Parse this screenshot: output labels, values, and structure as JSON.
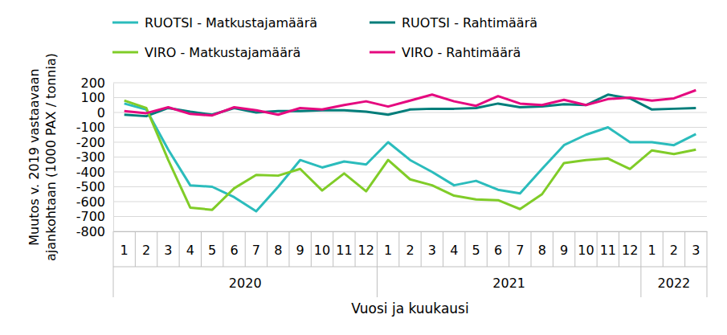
{
  "chart_data": {
    "type": "line",
    "y_label": [
      "Muutos v. 2019 vastaavaan",
      "ajankohtaan (1000 PAX / tonnia)"
    ],
    "x_label": "Vuosi ja kuukausi",
    "categories": [
      "1",
      "2",
      "3",
      "4",
      "5",
      "6",
      "7",
      "8",
      "9",
      "10",
      "11",
      "12",
      "1",
      "2",
      "3",
      "4",
      "5",
      "6",
      "7",
      "8",
      "9",
      "10",
      "11",
      "12",
      "1",
      "2",
      "3"
    ],
    "groups": [
      {
        "label": "2020",
        "count": 12
      },
      {
        "label": "2021",
        "count": 12
      },
      {
        "label": "2022",
        "count": 3
      }
    ],
    "ylim": [
      -800,
      200
    ],
    "yticks": [
      -800,
      -700,
      -600,
      -500,
      -400,
      -300,
      -200,
      -100,
      0,
      100,
      200
    ],
    "grid": true,
    "legend": "top",
    "series": [
      {
        "name": "RUOTSI - Matkustajamäärä",
        "color": "#2bbcbc",
        "values": [
          60,
          20,
          -250,
          -490,
          -500,
          -570,
          -665,
          -500,
          -320,
          -370,
          -330,
          -350,
          -200,
          -320,
          -400,
          -490,
          -460,
          -520,
          -545,
          -380,
          -220,
          -150,
          -100,
          -200,
          -200,
          -220,
          -145
        ]
      },
      {
        "name": "RUOTSI - Rahtimäärä",
        "color": "#007d7a",
        "values": [
          -15,
          -25,
          30,
          5,
          -15,
          30,
          0,
          10,
          10,
          15,
          15,
          5,
          -15,
          20,
          25,
          25,
          30,
          60,
          35,
          40,
          55,
          50,
          120,
          95,
          20,
          25,
          30
        ]
      },
      {
        "name": "VIRO - Matkustajamäärä",
        "color": "#80cc28",
        "values": [
          80,
          30,
          -320,
          -640,
          -655,
          -510,
          -420,
          -425,
          -380,
          -525,
          -410,
          -530,
          -320,
          -450,
          -490,
          -560,
          -585,
          -590,
          -650,
          -550,
          -340,
          -320,
          -310,
          -380,
          -255,
          -280,
          -250
        ]
      },
      {
        "name": "VIRO - Rahtimäärä",
        "color": "#e5097f",
        "values": [
          10,
          -5,
          35,
          -10,
          -20,
          35,
          15,
          -15,
          30,
          20,
          50,
          75,
          40,
          80,
          120,
          75,
          45,
          110,
          60,
          50,
          85,
          50,
          90,
          100,
          80,
          95,
          150
        ]
      }
    ]
  }
}
